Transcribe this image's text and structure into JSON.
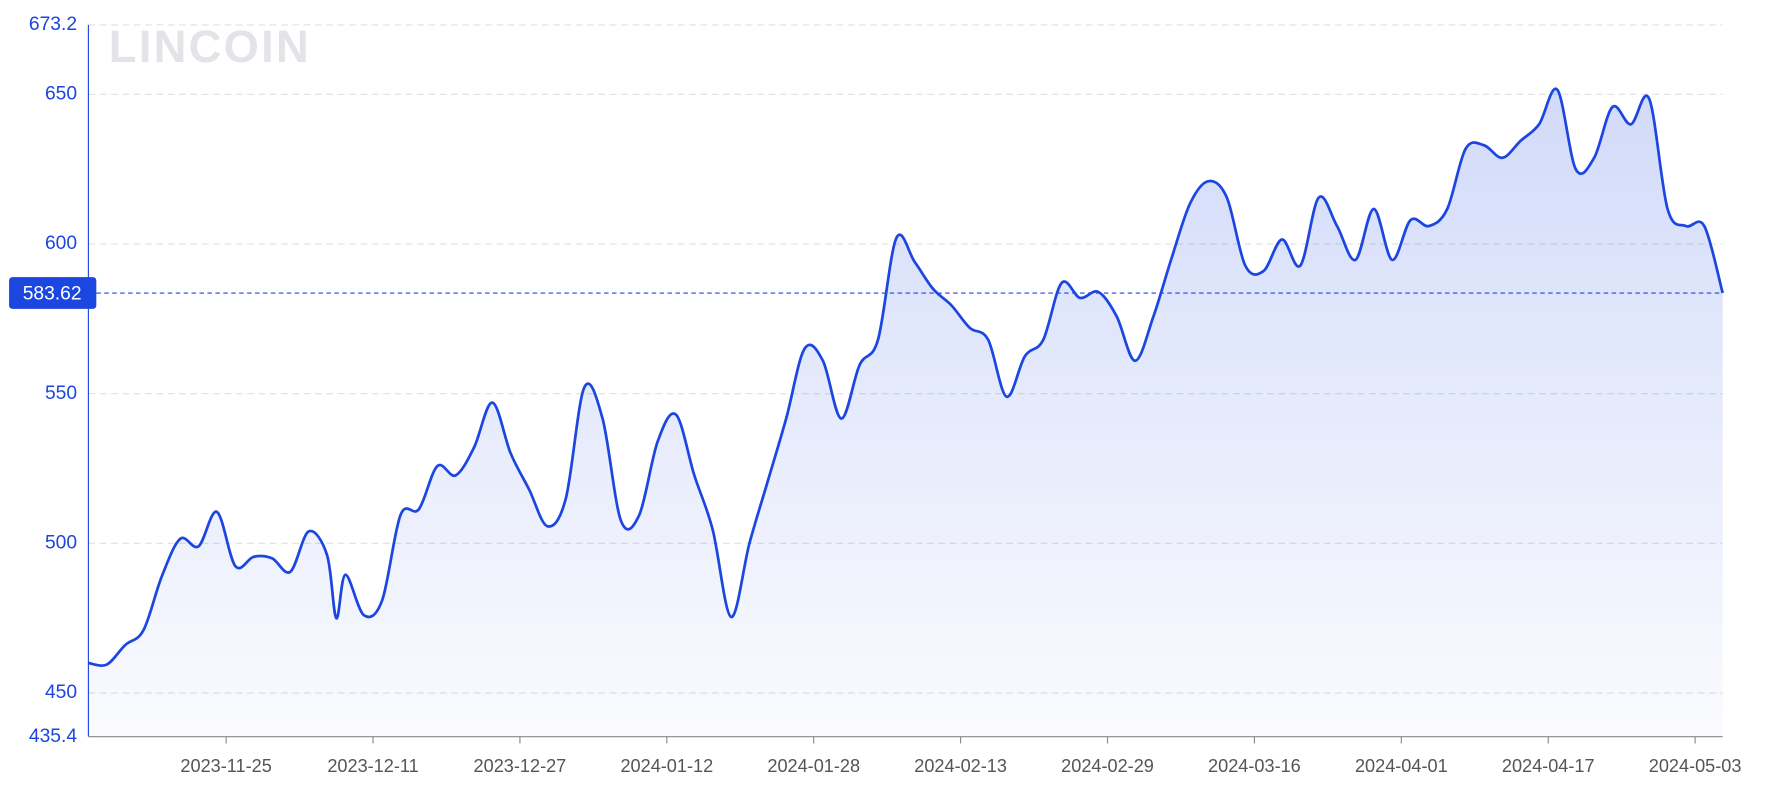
{
  "chart_data": {
    "type": "area",
    "watermark": "LINCOIN",
    "x": [
      "2023-11-10",
      "2023-11-12",
      "2023-11-14",
      "2023-11-16",
      "2023-11-18",
      "2023-11-20",
      "2023-11-22",
      "2023-11-24",
      "2023-11-26",
      "2023-11-28",
      "2023-11-30",
      "2023-12-02",
      "2023-12-04",
      "2023-12-06",
      "2023-12-07",
      "2023-12-08",
      "2023-12-10",
      "2023-12-12",
      "2023-12-14",
      "2023-12-16",
      "2023-12-18",
      "2023-12-20",
      "2023-12-22",
      "2023-12-24",
      "2023-12-26",
      "2023-12-28",
      "2023-12-30",
      "2024-01-01",
      "2024-01-03",
      "2024-01-05",
      "2024-01-07",
      "2024-01-09",
      "2024-01-11",
      "2024-01-13",
      "2024-01-15",
      "2024-01-17",
      "2024-01-19",
      "2024-01-21",
      "2024-01-23",
      "2024-01-25",
      "2024-01-27",
      "2024-01-29",
      "2024-01-31",
      "2024-02-02",
      "2024-02-04",
      "2024-02-06",
      "2024-02-08",
      "2024-02-10",
      "2024-02-12",
      "2024-02-14",
      "2024-02-16",
      "2024-02-18",
      "2024-02-20",
      "2024-02-22",
      "2024-02-24",
      "2024-02-26",
      "2024-02-28",
      "2024-03-01",
      "2024-03-03",
      "2024-03-05",
      "2024-03-07",
      "2024-03-09",
      "2024-03-11",
      "2024-03-13",
      "2024-03-15",
      "2024-03-17",
      "2024-03-19",
      "2024-03-21",
      "2024-03-23",
      "2024-03-25",
      "2024-03-27",
      "2024-03-29",
      "2024-03-31",
      "2024-04-02",
      "2024-04-04",
      "2024-04-06",
      "2024-04-08",
      "2024-04-10",
      "2024-04-12",
      "2024-04-14",
      "2024-04-16",
      "2024-04-18",
      "2024-04-20",
      "2024-04-22",
      "2024-04-24",
      "2024-04-26",
      "2024-04-28",
      "2024-04-30",
      "2024-05-02",
      "2024-05-04",
      "2024-05-06"
    ],
    "series": [
      {
        "color": "#1c46e0",
        "values": [
          460,
          459.5,
          466,
          471,
          489,
          501.5,
          499,
          510.5,
          492.4,
          495.5,
          495,
          490.5,
          504,
          496,
          475,
          489.5,
          476,
          481,
          509.5,
          511.4,
          525.8,
          522.7,
          532,
          547,
          530,
          518,
          505.7,
          515,
          552,
          541.7,
          507.6,
          509.5,
          534,
          543,
          522.7,
          504.5,
          475.4,
          500,
          520.8,
          541.7,
          565,
          561,
          541.7,
          559.6,
          568,
          602,
          594,
          585,
          579.5,
          572,
          568,
          549,
          562.5,
          568,
          587,
          582,
          584,
          575.8,
          561,
          575.8,
          595.5,
          613.6,
          621,
          615.5,
          592.8,
          591,
          601.5,
          592.8,
          615.5,
          606,
          594.7,
          611.7,
          594.7,
          608,
          606,
          611.7,
          631.8,
          633,
          628.8,
          634.5,
          640,
          651.5,
          625,
          628.8,
          645.8,
          640,
          648.5,
          611.7,
          606,
          606,
          583.62
        ]
      }
    ],
    "xlim": [
      "2023-11-10",
      "2024-05-06"
    ],
    "xticks": [
      "2023-11-25",
      "2023-12-11",
      "2023-12-27",
      "2024-01-12",
      "2024-01-28",
      "2024-02-13",
      "2024-02-29",
      "2024-03-16",
      "2024-04-01",
      "2024-04-17",
      "2024-05-03"
    ],
    "ylim": [
      435.4,
      673.2
    ],
    "yticks": [
      435.4,
      450,
      500,
      550,
      600,
      650,
      673.2
    ],
    "grid": true
  }
}
